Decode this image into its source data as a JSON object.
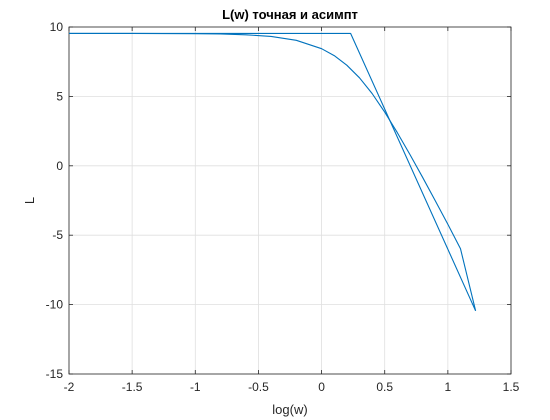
{
  "chart_data": {
    "type": "line",
    "title": "L(w) точная и асимпт",
    "xlabel": "log(w)",
    "ylabel": "L",
    "xlim": [
      -2,
      1.5
    ],
    "ylim": [
      -15,
      10
    ],
    "xticks": [
      "-2",
      "-1.5",
      "-1",
      "-0.5",
      "0",
      "0.5",
      "1",
      "1.5"
    ],
    "yticks": [
      "-15",
      "-10",
      "-5",
      "0",
      "5",
      "10"
    ],
    "grid": true,
    "legend": "none",
    "line_color": "#0072BD",
    "series": [
      {
        "x": [
          -2,
          -1.5,
          -1,
          -0.8,
          -0.6,
          -0.4,
          -0.2,
          0,
          0.1,
          0.2,
          0.3,
          0.4,
          0.5,
          0.6,
          0.7,
          0.8,
          0.9,
          1.0,
          1.1,
          1.22
        ],
        "y": [
          9.54,
          9.54,
          9.52,
          9.5,
          9.44,
          9.32,
          9.04,
          8.44,
          7.94,
          7.25,
          6.34,
          5.21,
          3.87,
          2.39,
          0.81,
          -0.83,
          -2.51,
          -4.22,
          -5.98,
          -10.45
        ]
      },
      {
        "x": [
          -2,
          0.23,
          1.22
        ],
        "y": [
          9.54,
          9.54,
          -10.45
        ]
      }
    ]
  }
}
